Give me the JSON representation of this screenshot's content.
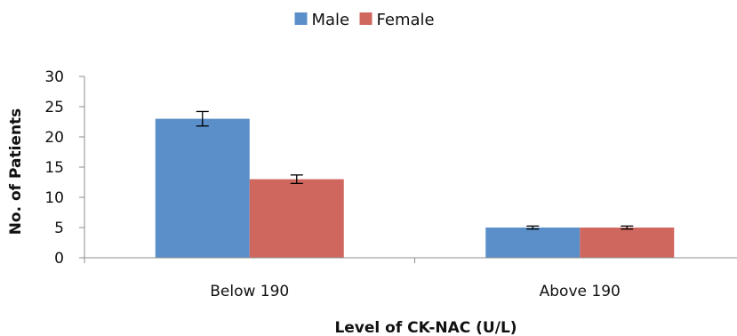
{
  "chart_data": {
    "type": "bar",
    "categories": [
      "Below 190",
      "Above 190"
    ],
    "series": [
      {
        "name": "Male",
        "values": [
          23,
          5
        ],
        "errors": [
          1.2,
          0.25
        ],
        "color": "#5B8FC9"
      },
      {
        "name": "Female",
        "values": [
          13,
          5
        ],
        "errors": [
          0.7,
          0.25
        ],
        "color": "#D0675E"
      }
    ],
    "xlabel": "Level of CK-NAC  (U/L)",
    "ylabel": "No. of Patients",
    "ylim": [
      0,
      30
    ],
    "yticks": [
      0,
      5,
      10,
      15,
      20,
      25,
      30
    ],
    "grid": false,
    "legend": "top-center",
    "error_bars": true
  }
}
